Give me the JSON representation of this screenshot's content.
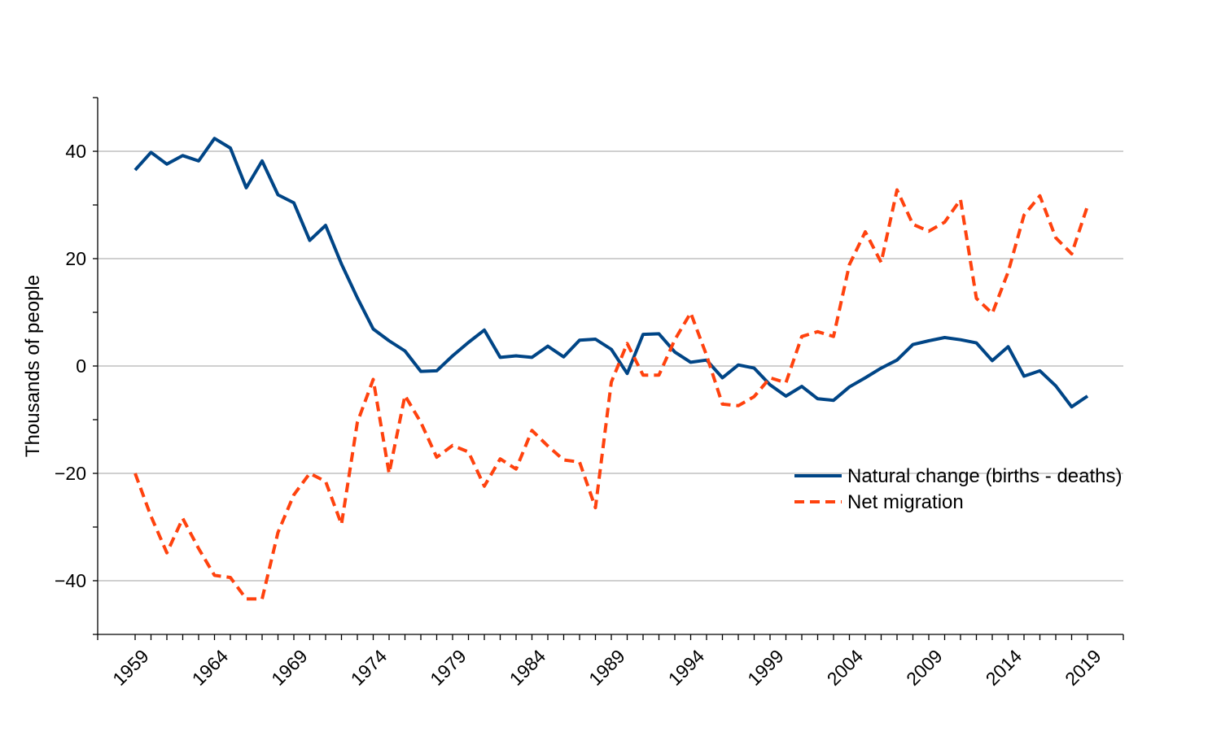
{
  "chart_data": {
    "type": "line",
    "ylabel": "Thousands of people",
    "ylim": [
      -50,
      50
    ],
    "y_ticks": [
      {
        "value": 40,
        "label": "40"
      },
      {
        "value": 20,
        "label": "20"
      },
      {
        "value": 0,
        "label": "0"
      },
      {
        "value": -20,
        "label": "−20"
      },
      {
        "value": -40,
        "label": "−40"
      }
    ],
    "x_tick_labels": [
      "1959",
      "1964",
      "1969",
      "1974",
      "1979",
      "1984",
      "1989",
      "1994",
      "1999",
      "2004",
      "2009",
      "2014",
      "2019"
    ],
    "grid": "horizontal",
    "legend_position": "right-middle",
    "x": [
      1959,
      1960,
      1961,
      1962,
      1963,
      1964,
      1965,
      1966,
      1967,
      1968,
      1969,
      1970,
      1971,
      1972,
      1973,
      1974,
      1975,
      1976,
      1977,
      1978,
      1979,
      1980,
      1981,
      1982,
      1983,
      1984,
      1985,
      1986,
      1987,
      1988,
      1989,
      1990,
      1991,
      1992,
      1993,
      1994,
      1995,
      1996,
      1997,
      1998,
      1999,
      2000,
      2001,
      2002,
      2003,
      2004,
      2005,
      2006,
      2007,
      2008,
      2009,
      2010,
      2011,
      2012,
      2013,
      2014,
      2015,
      2016,
      2017,
      2018,
      2019
    ],
    "series": [
      {
        "name": "Natural change (births - deaths)",
        "color": "#004586",
        "style": "solid",
        "values": [
          36.5,
          39.8,
          37.6,
          39.2,
          38.2,
          42.4,
          40.6,
          33.2,
          38.2,
          31.9,
          30.4,
          23.4,
          26.2,
          19.0,
          12.7,
          6.9,
          4.7,
          2.8,
          -1.0,
          -0.9,
          1.9,
          4.4,
          6.7,
          1.6,
          1.9,
          1.6,
          3.7,
          1.7,
          4.8,
          5.0,
          3.1,
          -1.4,
          5.9,
          6.0,
          2.6,
          0.7,
          1.1,
          -2.2,
          0.2,
          -0.4,
          -3.5,
          -5.6,
          -3.8,
          -6.1,
          -6.4,
          -3.9,
          -2.2,
          -0.4,
          1.1,
          4.0,
          4.7,
          5.3,
          4.9,
          4.3,
          1.0,
          3.6,
          -1.9,
          -0.9,
          -3.7,
          -7.6,
          -5.6
        ]
      },
      {
        "name": "Net migration",
        "color": "#ff420e",
        "style": "dashed",
        "values": [
          -20.0,
          -28.0,
          -34.8,
          -28.4,
          -34.0,
          -39.0,
          -39.4,
          -43.4,
          -43.4,
          -31.0,
          -24.0,
          -20.0,
          -21.5,
          -29.5,
          -10.5,
          -2.5,
          -20.0,
          -5.5,
          -10.5,
          -17.0,
          -14.8,
          -16.0,
          -22.4,
          -17.3,
          -19.2,
          -12.0,
          -14.9,
          -17.5,
          -17.9,
          -26.4,
          -3.0,
          4.2,
          -1.7,
          -1.7,
          4.9,
          9.9,
          2.0,
          -7.1,
          -7.4,
          -5.7,
          -2.2,
          -3.1,
          5.5,
          6.4,
          5.5,
          18.9,
          25.0,
          19.3,
          32.8,
          26.4,
          25.1,
          26.8,
          31.0,
          12.6,
          9.8,
          17.5,
          28.1,
          31.7,
          23.9,
          20.9,
          29.8
        ]
      }
    ]
  }
}
